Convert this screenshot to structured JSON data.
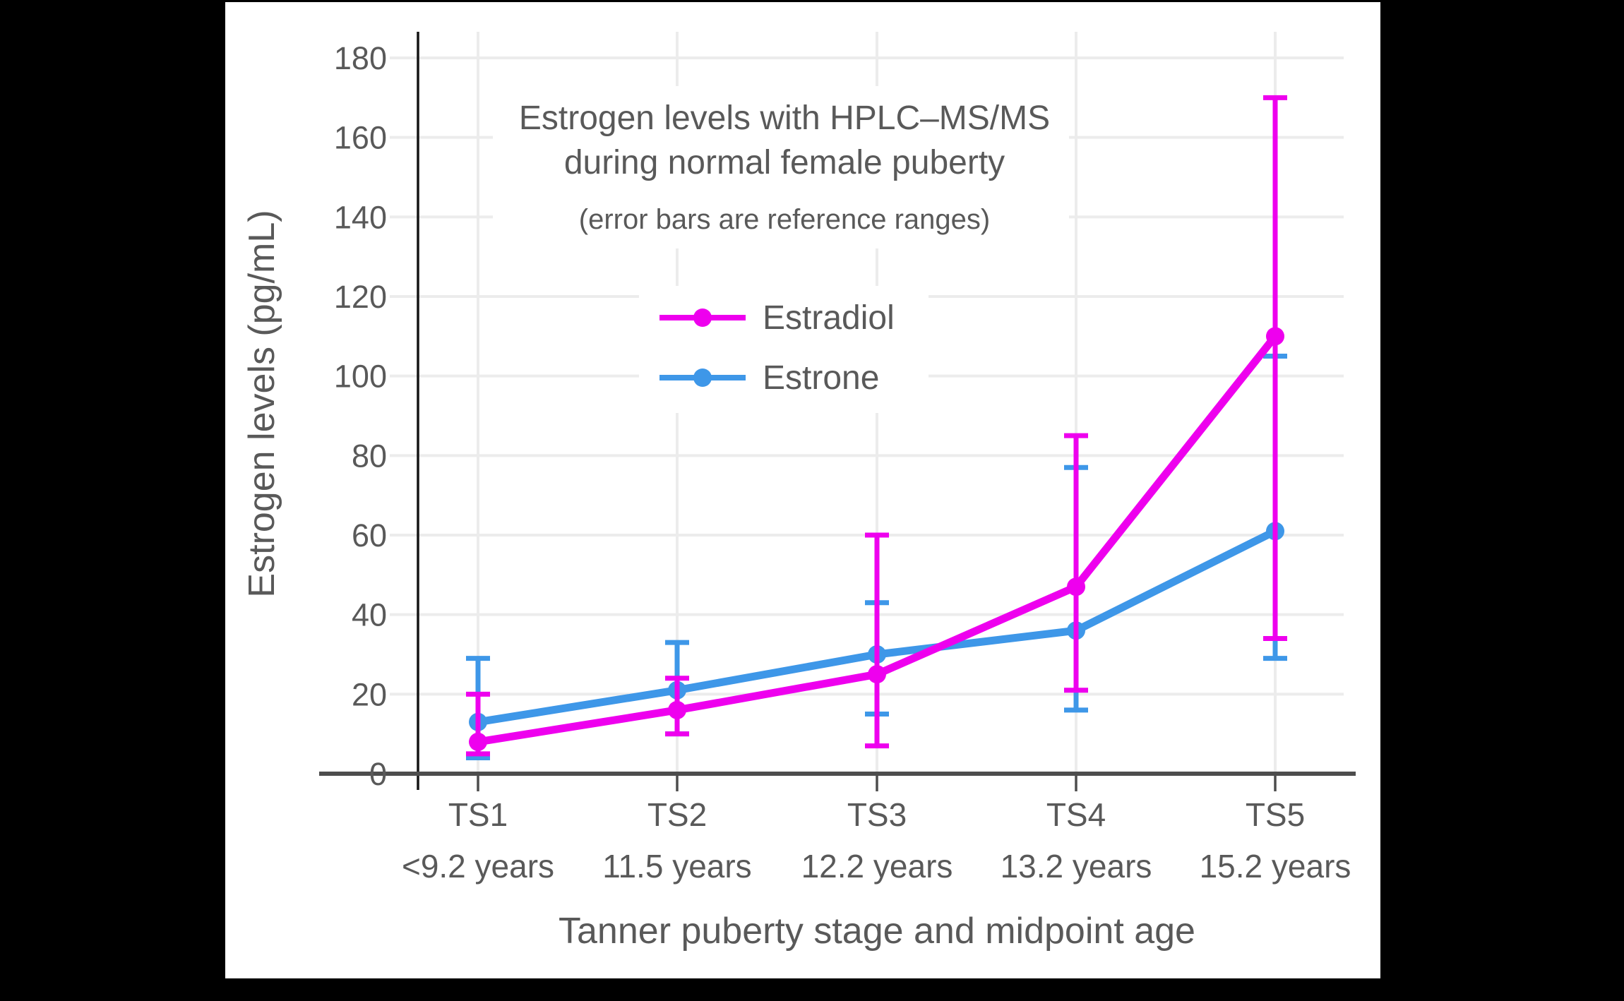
{
  "page": {
    "outer_background": "#000000",
    "panel_background": "#ffffff"
  },
  "chart_data": {
    "type": "line",
    "title_lines": [
      "Estrogen levels with HPLC–MS/MS",
      "during normal female puberty"
    ],
    "subtitle": "(error bars are reference ranges)",
    "ylabel": "Estrogen levels (pg/mL)",
    "xlabel": "Tanner puberty stage and midpoint age",
    "categories": [
      {
        "stage": "TS1",
        "age": "<9.2 years"
      },
      {
        "stage": "TS2",
        "age": "11.5 years"
      },
      {
        "stage": "TS3",
        "age": "12.2 years"
      },
      {
        "stage": "TS4",
        "age": "13.2 years"
      },
      {
        "stage": "TS5",
        "age": "15.2 years"
      }
    ],
    "yticks": [
      0,
      20,
      40,
      60,
      80,
      100,
      120,
      140,
      160,
      180
    ],
    "ylim": [
      0,
      186
    ],
    "grid": true,
    "legend_position": "upper-left-inside",
    "error_bar_meaning": "reference ranges",
    "series": [
      {
        "name": "Estradiol",
        "color": "#ee00ee",
        "values": [
          8,
          16,
          25,
          47,
          110
        ],
        "err_low": [
          5,
          10,
          7,
          21,
          34
        ],
        "err_high": [
          20,
          24,
          60,
          85,
          170
        ]
      },
      {
        "name": "Estrone",
        "color": "#3e97e8",
        "values": [
          13,
          21,
          30,
          36,
          61
        ],
        "err_low": [
          4,
          10,
          15,
          16,
          29
        ],
        "err_high": [
          29,
          33,
          43,
          77,
          105
        ]
      }
    ],
    "colors": {
      "text": "#595959",
      "axis": "#4d4d4d",
      "spine": "#141414",
      "grid": "#ececec"
    }
  }
}
